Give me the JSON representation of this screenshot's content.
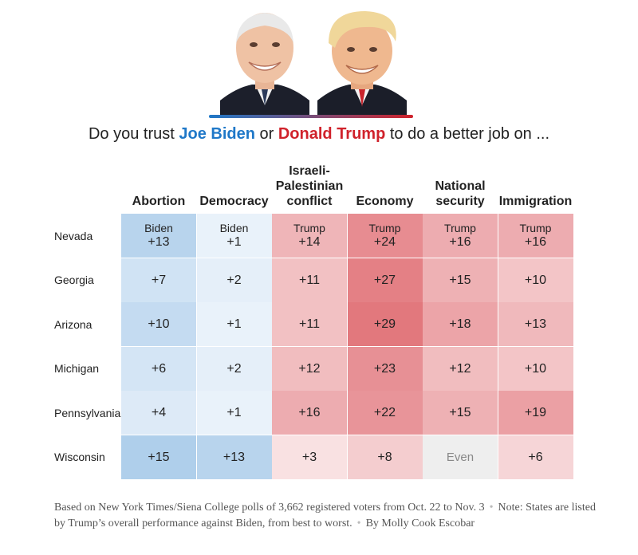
{
  "header": {
    "question_prefix": "Do you trust ",
    "biden_name": "Joe Biden",
    "question_or": " or ",
    "trump_name": "Donald Trump",
    "question_suffix": " to do a better job on ...",
    "biden_color": "#1f78c8",
    "trump_color": "#d0222b"
  },
  "portraits": {
    "left": "biden-portrait",
    "right": "trump-portrait"
  },
  "chart_data": {
    "type": "heatmap",
    "title": "Do you trust Joe Biden or Donald Trump to do a better job on ...",
    "columns": [
      "Abortion",
      "Democracy",
      "Israeli-Palestinian conflict",
      "Economy",
      "National security",
      "Immigration"
    ],
    "column_header_lines": [
      [
        "Abortion"
      ],
      [
        "Democracy"
      ],
      [
        "Israeli-",
        "Palestinian",
        "conflict"
      ],
      [
        "Economy"
      ],
      [
        "National",
        "security"
      ],
      [
        "Immigration"
      ]
    ],
    "rows": [
      "Nevada",
      "Georgia",
      "Arizona",
      "Michigan",
      "Pennsylvania",
      "Wisconsin"
    ],
    "cell_labels": [
      [
        "+13",
        "+1",
        "+14",
        "+24",
        "+16",
        "+16"
      ],
      [
        "+7",
        "+2",
        "+11",
        "+27",
        "+15",
        "+10"
      ],
      [
        "+10",
        "+1",
        "+11",
        "+29",
        "+18",
        "+13"
      ],
      [
        "+6",
        "+2",
        "+12",
        "+23",
        "+12",
        "+10"
      ],
      [
        "+4",
        "+1",
        "+16",
        "+22",
        "+15",
        "+19"
      ],
      [
        "+15",
        "+13",
        "+3",
        "+8",
        "Even",
        "+6"
      ]
    ],
    "leaders": [
      [
        "Biden",
        "Biden",
        "Trump",
        "Trump",
        "Trump",
        "Trump"
      ],
      [
        "Biden",
        "Biden",
        "Trump",
        "Trump",
        "Trump",
        "Trump"
      ],
      [
        "Biden",
        "Biden",
        "Trump",
        "Trump",
        "Trump",
        "Trump"
      ],
      [
        "Biden",
        "Biden",
        "Trump",
        "Trump",
        "Trump",
        "Trump"
      ],
      [
        "Biden",
        "Biden",
        "Trump",
        "Trump",
        "Trump",
        "Trump"
      ],
      [
        "Biden",
        "Biden",
        "Trump",
        "Trump",
        "Even",
        "Trump"
      ]
    ],
    "margins": [
      [
        13,
        1,
        14,
        24,
        16,
        16
      ],
      [
        7,
        2,
        11,
        27,
        15,
        10
      ],
      [
        10,
        1,
        11,
        29,
        18,
        13
      ],
      [
        6,
        2,
        12,
        23,
        12,
        10
      ],
      [
        4,
        1,
        16,
        22,
        15,
        19
      ],
      [
        15,
        13,
        3,
        8,
        0,
        6
      ]
    ],
    "show_leader_label_row": 0,
    "colors": {
      "biden": "#1f78c8",
      "trump": "#d0222b",
      "even": "#eeeeee"
    }
  },
  "footnote": {
    "source": "Based on New York Times/Siena College polls of 3,662 registered voters from Oct. 22 to Nov. 3",
    "note": "Note: States are listed by Trump’s overall performance against Biden, from best to worst.",
    "byline": "By Molly Cook Escobar",
    "separator": "•"
  }
}
